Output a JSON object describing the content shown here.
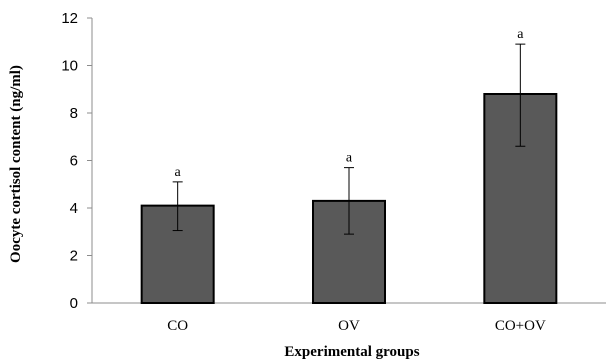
{
  "chart_data": {
    "type": "bar",
    "title": "",
    "xlabel": "Experimental groups",
    "ylabel": "Oocyte cortisol content (ng/ml)",
    "ylim": [
      0,
      12
    ],
    "yticks": [
      0,
      2,
      4,
      6,
      8,
      10,
      12
    ],
    "categories": [
      "CO",
      "OV",
      "CO+OV"
    ],
    "values": [
      4.1,
      4.3,
      8.8
    ],
    "error_upper": [
      5.1,
      5.7,
      10.9
    ],
    "error_lower": [
      3.05,
      2.9,
      6.6
    ],
    "significance_labels": [
      "a",
      "a",
      "a"
    ],
    "bar_color": "#595959",
    "grid": false
  }
}
